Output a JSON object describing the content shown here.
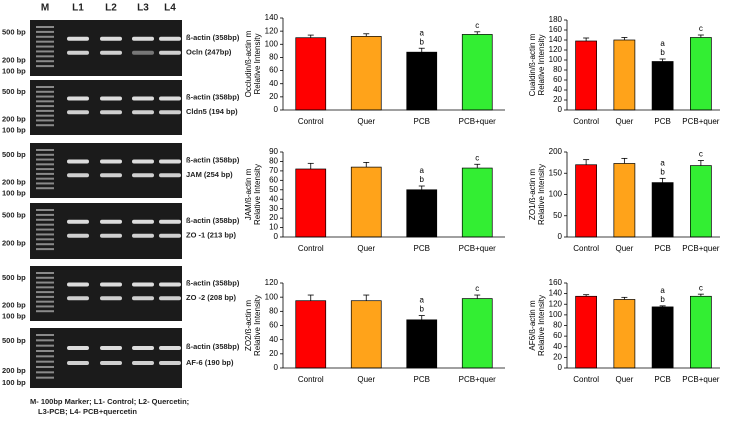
{
  "gel": {
    "lanes": [
      "M",
      "L1",
      "L2",
      "L3",
      "L4"
    ],
    "panels": [
      {
        "left": [
          "500 bp",
          "200 bp",
          "100 bp"
        ],
        "right": [
          "ß-actin (358bp)",
          "Ocln (247bp)"
        ]
      },
      {
        "left": [
          "500 bp",
          "200 bp",
          "100 bp"
        ],
        "right": [
          "ß-actin (358bp)",
          "Cldn5 (194 bp)"
        ]
      },
      {
        "left": [
          "500 bp",
          "200 bp",
          "100 bp"
        ],
        "right": [
          "ß-actin (358bp)",
          "JAM (254 bp)"
        ]
      },
      {
        "left": [
          "500 bp",
          "200 bp"
        ],
        "right": [
          "ß-actin (358bp)",
          "ZO -1 (213 bp)"
        ]
      },
      {
        "left": [
          "500 bp",
          "200 bp",
          "100 bp"
        ],
        "right": [
          "ß-actin (358bp)",
          "ZO -2 (208 bp)"
        ]
      },
      {
        "left": [
          "500 bp",
          "200 bp",
          "100 bp"
        ],
        "right": [
          "ß-actin (358bp)",
          "AF-6 (190 bp)"
        ]
      }
    ],
    "caption": [
      "M- 100bp Marker; L1- Control; L2- Quercetin;",
      "L3-PCB; L4- PCB+quercetin"
    ]
  },
  "chart_data": [
    {
      "type": "bar",
      "ylabel": [
        "Occludin/ß-actin m",
        "Relative Intensity"
      ],
      "categories": [
        "Control",
        "Quer",
        "PCB",
        "PCB+quer"
      ],
      "values": [
        110,
        112,
        88,
        115
      ],
      "errors": [
        4,
        4,
        6,
        4
      ],
      "colors": [
        "#ff0000",
        "#ffa31a",
        "#000000",
        "#33ee33"
      ],
      "annotations": [
        {
          "category": "PCB",
          "text": [
            "a",
            "b"
          ]
        },
        {
          "category": "PCB+quer",
          "text": [
            "c"
          ]
        }
      ],
      "ylim": [
        0,
        140
      ],
      "yticks": [
        0,
        20,
        40,
        60,
        80,
        100,
        120,
        140
      ]
    },
    {
      "type": "bar",
      "ylabel": [
        "Cualdin/ß-actin m",
        "Relative Intensity"
      ],
      "categories": [
        "Control",
        "Quer",
        "PCB",
        "PCB+quer"
      ],
      "values": [
        138,
        140,
        97,
        145
      ],
      "errors": [
        6,
        5,
        5,
        5
      ],
      "colors": [
        "#ff0000",
        "#ffa31a",
        "#000000",
        "#33ee33"
      ],
      "annotations": [
        {
          "category": "PCB",
          "text": [
            "a",
            "b"
          ]
        },
        {
          "category": "PCB+quer",
          "text": [
            "c"
          ]
        }
      ],
      "ylim": [
        0,
        180
      ],
      "yticks": [
        0,
        20,
        40,
        60,
        80,
        100,
        120,
        140,
        160,
        180
      ]
    },
    {
      "type": "bar",
      "ylabel": [
        "JAM/ß-actin m",
        "Relative Intensity"
      ],
      "categories": [
        "Control",
        "Quer",
        "PCB",
        "PCB+quer"
      ],
      "values": [
        72,
        74,
        50,
        73
      ],
      "errors": [
        6,
        5,
        4,
        4
      ],
      "colors": [
        "#ff0000",
        "#ffa31a",
        "#000000",
        "#33ee33"
      ],
      "annotations": [
        {
          "category": "PCB",
          "text": [
            "a",
            "b"
          ]
        },
        {
          "category": "PCB+quer",
          "text": [
            "c"
          ]
        }
      ],
      "ylim": [
        0,
        90
      ],
      "yticks": [
        0,
        10,
        20,
        30,
        40,
        50,
        60,
        70,
        80,
        90
      ]
    },
    {
      "type": "bar",
      "ylabel": [
        "ZO1/ß-actin m",
        "Relative Intensity"
      ],
      "categories": [
        "Control",
        "Quer",
        "PCB",
        "PCB+quer"
      ],
      "values": [
        170,
        173,
        128,
        168
      ],
      "errors": [
        12,
        12,
        10,
        12
      ],
      "colors": [
        "#ff0000",
        "#ffa31a",
        "#000000",
        "#33ee33"
      ],
      "annotations": [
        {
          "category": "PCB",
          "text": [
            "a",
            "b"
          ]
        },
        {
          "category": "PCB+quer",
          "text": [
            "c"
          ]
        }
      ],
      "ylim": [
        0,
        200
      ],
      "yticks": [
        0,
        50,
        100,
        150,
        200
      ]
    },
    {
      "type": "bar",
      "ylabel": [
        "ZO2/ß-actin m",
        "Relative Intensity"
      ],
      "categories": [
        "Control",
        "Quer",
        "PCB",
        "PCB+quer"
      ],
      "values": [
        95,
        95,
        68,
        98
      ],
      "errors": [
        8,
        8,
        6,
        5
      ],
      "colors": [
        "#ff0000",
        "#ffa31a",
        "#000000",
        "#33ee33"
      ],
      "annotations": [
        {
          "category": "PCB",
          "text": [
            "a",
            "b"
          ]
        },
        {
          "category": "PCB+quer",
          "text": [
            "c"
          ]
        }
      ],
      "ylim": [
        0,
        120
      ],
      "yticks": [
        0,
        20,
        40,
        60,
        80,
        100,
        120
      ]
    },
    {
      "type": "bar",
      "ylabel": [
        "AF6/ß-actin m",
        "Relative Intensity"
      ],
      "categories": [
        "Control",
        "Quer",
        "PCB",
        "PCB+quer"
      ],
      "values": [
        135,
        129,
        115,
        135
      ],
      "errors": [
        3,
        4,
        2,
        4
      ],
      "colors": [
        "#ff0000",
        "#ffa31a",
        "#000000",
        "#33ee33"
      ],
      "annotations": [
        {
          "category": "PCB",
          "text": [
            "a",
            "b"
          ]
        },
        {
          "category": "PCB+quer",
          "text": [
            "c"
          ]
        }
      ],
      "ylim": [
        0,
        160
      ],
      "yticks": [
        0,
        20,
        40,
        60,
        80,
        100,
        120,
        140,
        160
      ]
    }
  ]
}
